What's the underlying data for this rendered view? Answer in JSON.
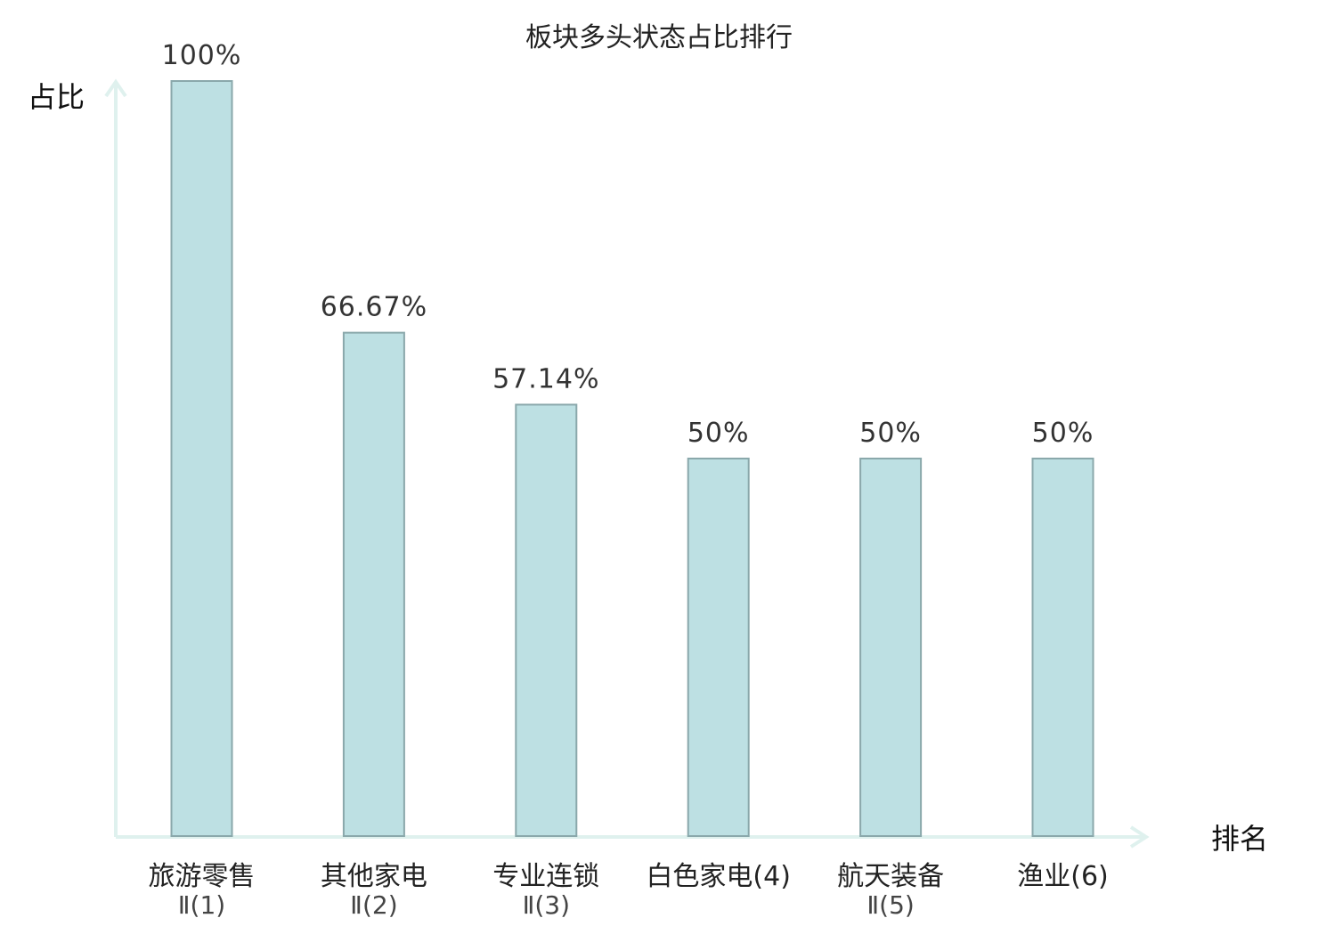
{
  "chart_data": {
    "type": "bar",
    "title": "板块多头状态占比排行",
    "ylabel": "占比",
    "xlabel": "排名",
    "ylim": [
      0,
      100
    ],
    "grid": false,
    "legend": "none",
    "categories": [
      {
        "line1": "旅游零售",
        "line2": "Ⅱ(1)"
      },
      {
        "line1": "其他家电",
        "line2": "Ⅱ(2)"
      },
      {
        "line1": "专业连锁",
        "line2": "Ⅱ(3)"
      },
      {
        "line1": "白色家电(4)",
        "line2": ""
      },
      {
        "line1": "航天装备",
        "line2": "Ⅱ(5)"
      },
      {
        "line1": "渔业(6)",
        "line2": "",
        "highlight": true
      }
    ],
    "values": [
      100,
      66.67,
      57.14,
      50,
      50,
      50
    ],
    "value_labels": [
      "100%",
      "66.67%",
      "57.14%",
      "50%",
      "50%",
      "50%"
    ],
    "colors": {
      "bar_fill": "#bde0e3",
      "bar_stroke": "#8aa8ab",
      "axis": "#dff1ee",
      "highlight": "#e02020",
      "text": "#222222"
    }
  }
}
